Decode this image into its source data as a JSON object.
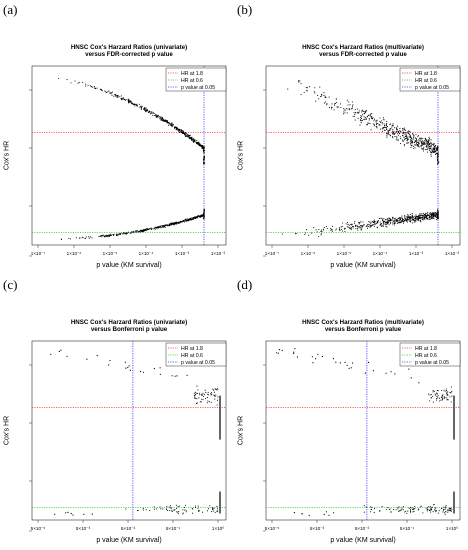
{
  "panels": [
    {
      "letter": "(a)",
      "title_line1": "HNSC Cox's Harzard Ratios (univariate)",
      "title_line2": "versus FDR-corrected p value",
      "xlabel": "p value (KM survival)",
      "ylabel": "Cox's HR",
      "xticks": [
        "1×10⁻⁷",
        "1×10⁻⁶",
        "1×10⁻⁵",
        "1×10⁻⁴",
        "1×10⁻³",
        "1×10⁻²"
      ],
      "legend": [
        "HR at 1.8",
        "HR at 0.6",
        "p value at 0.05"
      ]
    },
    {
      "letter": "(b)",
      "title_line1": "HNSC Cox's Harzard Ratios (multivariate)",
      "title_line2": "versus FDR-corrected p value",
      "xlabel": "p value (KM survival)",
      "ylabel": "Cox's HR",
      "xticks": [
        "1×10⁻⁷",
        "1×10⁻⁶",
        "1×10⁻⁵",
        "1×10⁻⁴",
        "1×10⁻³",
        "1×10⁻²"
      ],
      "legend": [
        "HR at 1.8",
        "HR at 0.6",
        "p value at 0.05"
      ]
    },
    {
      "letter": "(c)",
      "title_line1": "HNSC Cox's Harzard Ratios (univariate)",
      "title_line2": "versus Bonferroni p value",
      "xlabel": "p value (KM survival)",
      "ylabel": "Cox's HR",
      "xticks": [
        "5×10⁻⁵",
        "5×10⁻³",
        "5×10⁻²",
        "5×10⁻¹",
        "1×10⁰"
      ],
      "legend": [
        "HR at 1.8",
        "HR at 0.6",
        "p value at 0.05"
      ]
    },
    {
      "letter": "(d)",
      "title_line1": "HNSC Cox's Harzard Ratios (multivariate)",
      "title_line2": "versus Bonferroni p value",
      "xlabel": "p value (KM survival)",
      "ylabel": "Cox's HR",
      "xticks": [
        "5×10⁻⁵",
        "5×10⁻³",
        "5×10⁻²",
        "5×10⁻¹",
        "1×10⁰"
      ],
      "legend": [
        "HR at 1.8",
        "HR at 0.6",
        "p value at 0.05"
      ]
    }
  ],
  "chart_data": [
    {
      "type": "scatter",
      "title": "HNSC Cox's Harzard Ratios (univariate) versus FDR-corrected p value",
      "xlabel": "p value (KM survival)",
      "ylabel": "Cox's HR",
      "x_scale": "log",
      "xlim": [
        1e-07,
        0.05
      ],
      "xticks": [
        1e-07,
        1e-06,
        1e-05,
        0.0001,
        0.001,
        0.01
      ],
      "reference_lines": {
        "hr_high": 1.8,
        "hr_low": 0.6,
        "p_value": 0.05
      },
      "colors": {
        "hr_high": "#ff3030",
        "hr_low": "#33cc33",
        "p_value": "#3333ff",
        "points": "#000000"
      },
      "legend_position": "top-right",
      "shape": "two smooth arcs converging toward p=0.05; upper arc from high HR down to ~1.4, lower arc from ~0.5 up to ~0.7"
    },
    {
      "type": "scatter",
      "title": "HNSC Cox's Harzard Ratios (multivariate) versus FDR-corrected p value",
      "xlabel": "p value (KM survival)",
      "ylabel": "Cox's HR",
      "x_scale": "log",
      "xlim": [
        1e-07,
        0.05
      ],
      "xticks": [
        1e-07,
        1e-06,
        1e-05,
        0.0001,
        0.001,
        0.01
      ],
      "reference_lines": {
        "hr_high": 1.8,
        "hr_low": 0.6,
        "p_value": 0.05
      },
      "colors": {
        "hr_high": "#ff3030",
        "hr_low": "#33cc33",
        "p_value": "#3333ff",
        "points": "#000000"
      },
      "legend_position": "top-right",
      "shape": "two scattered bands converging toward p=0.05"
    },
    {
      "type": "scatter",
      "title": "HNSC Cox's Harzard Ratios (univariate) versus Bonferroni p value",
      "xlabel": "p value (KM survival)",
      "ylabel": "Cox's HR",
      "x_scale": "log",
      "xlim": [
        5e-05,
        1
      ],
      "xticks": [
        5e-05,
        0.005,
        0.05,
        0.5,
        1
      ],
      "reference_lines": {
        "hr_high": 1.8,
        "hr_low": 0.6,
        "p_value": 0.05
      },
      "colors": {
        "hr_high": "#ff3030",
        "hr_low": "#33cc33",
        "p_value": "#3333ff",
        "points": "#000000"
      },
      "legend_position": "top-right",
      "shape": "sparse points; many points pile up at p=1"
    },
    {
      "type": "scatter",
      "title": "HNSC Cox's Harzard Ratios (multivariate) versus Bonferroni p value",
      "xlabel": "p value (KM survival)",
      "ylabel": "Cox's HR",
      "x_scale": "log",
      "xlim": [
        5e-05,
        1
      ],
      "xticks": [
        5e-05,
        0.005,
        0.05,
        0.5,
        1
      ],
      "reference_lines": {
        "hr_high": 1.8,
        "hr_low": 0.6,
        "p_value": 0.05
      },
      "colors": {
        "hr_high": "#ff3030",
        "hr_low": "#33cc33",
        "p_value": "#3333ff",
        "points": "#000000"
      },
      "legend_position": "top-right",
      "shape": "sparse points; many points pile up at p=1"
    }
  ]
}
